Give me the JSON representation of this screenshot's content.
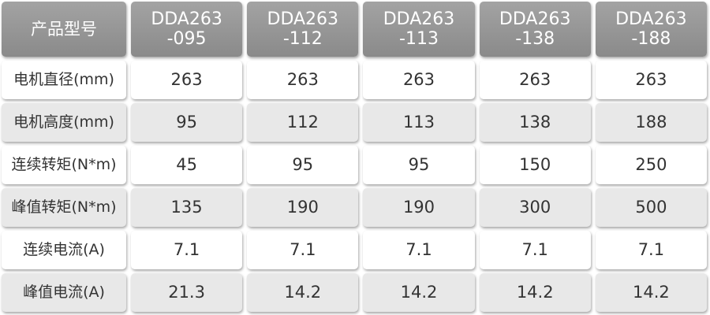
{
  "table": {
    "header": [
      "产品型号",
      "DDA263\n-095",
      "DDA263\n-112",
      "DDA263\n-113",
      "DDA263\n-138",
      "DDA263\n-188"
    ],
    "rows": [
      [
        "电机直径(mm)",
        "263",
        "263",
        "263",
        "263",
        "263"
      ],
      [
        "电机高度(mm)",
        "95",
        "112",
        "113",
        "138",
        "188"
      ],
      [
        "连续转矩(N*m)",
        "45",
        "95",
        "95",
        "150",
        "250"
      ],
      [
        "峰值转矩(N*m)",
        "135",
        "190",
        "190",
        "300",
        "500"
      ],
      [
        "连续电流(A)",
        "7.1",
        "7.1",
        "7.1",
        "7.1",
        "7.1"
      ],
      [
        "峰值电流(A)",
        "21.3",
        "14.2",
        "14.2",
        "14.2",
        "14.2"
      ]
    ]
  }
}
